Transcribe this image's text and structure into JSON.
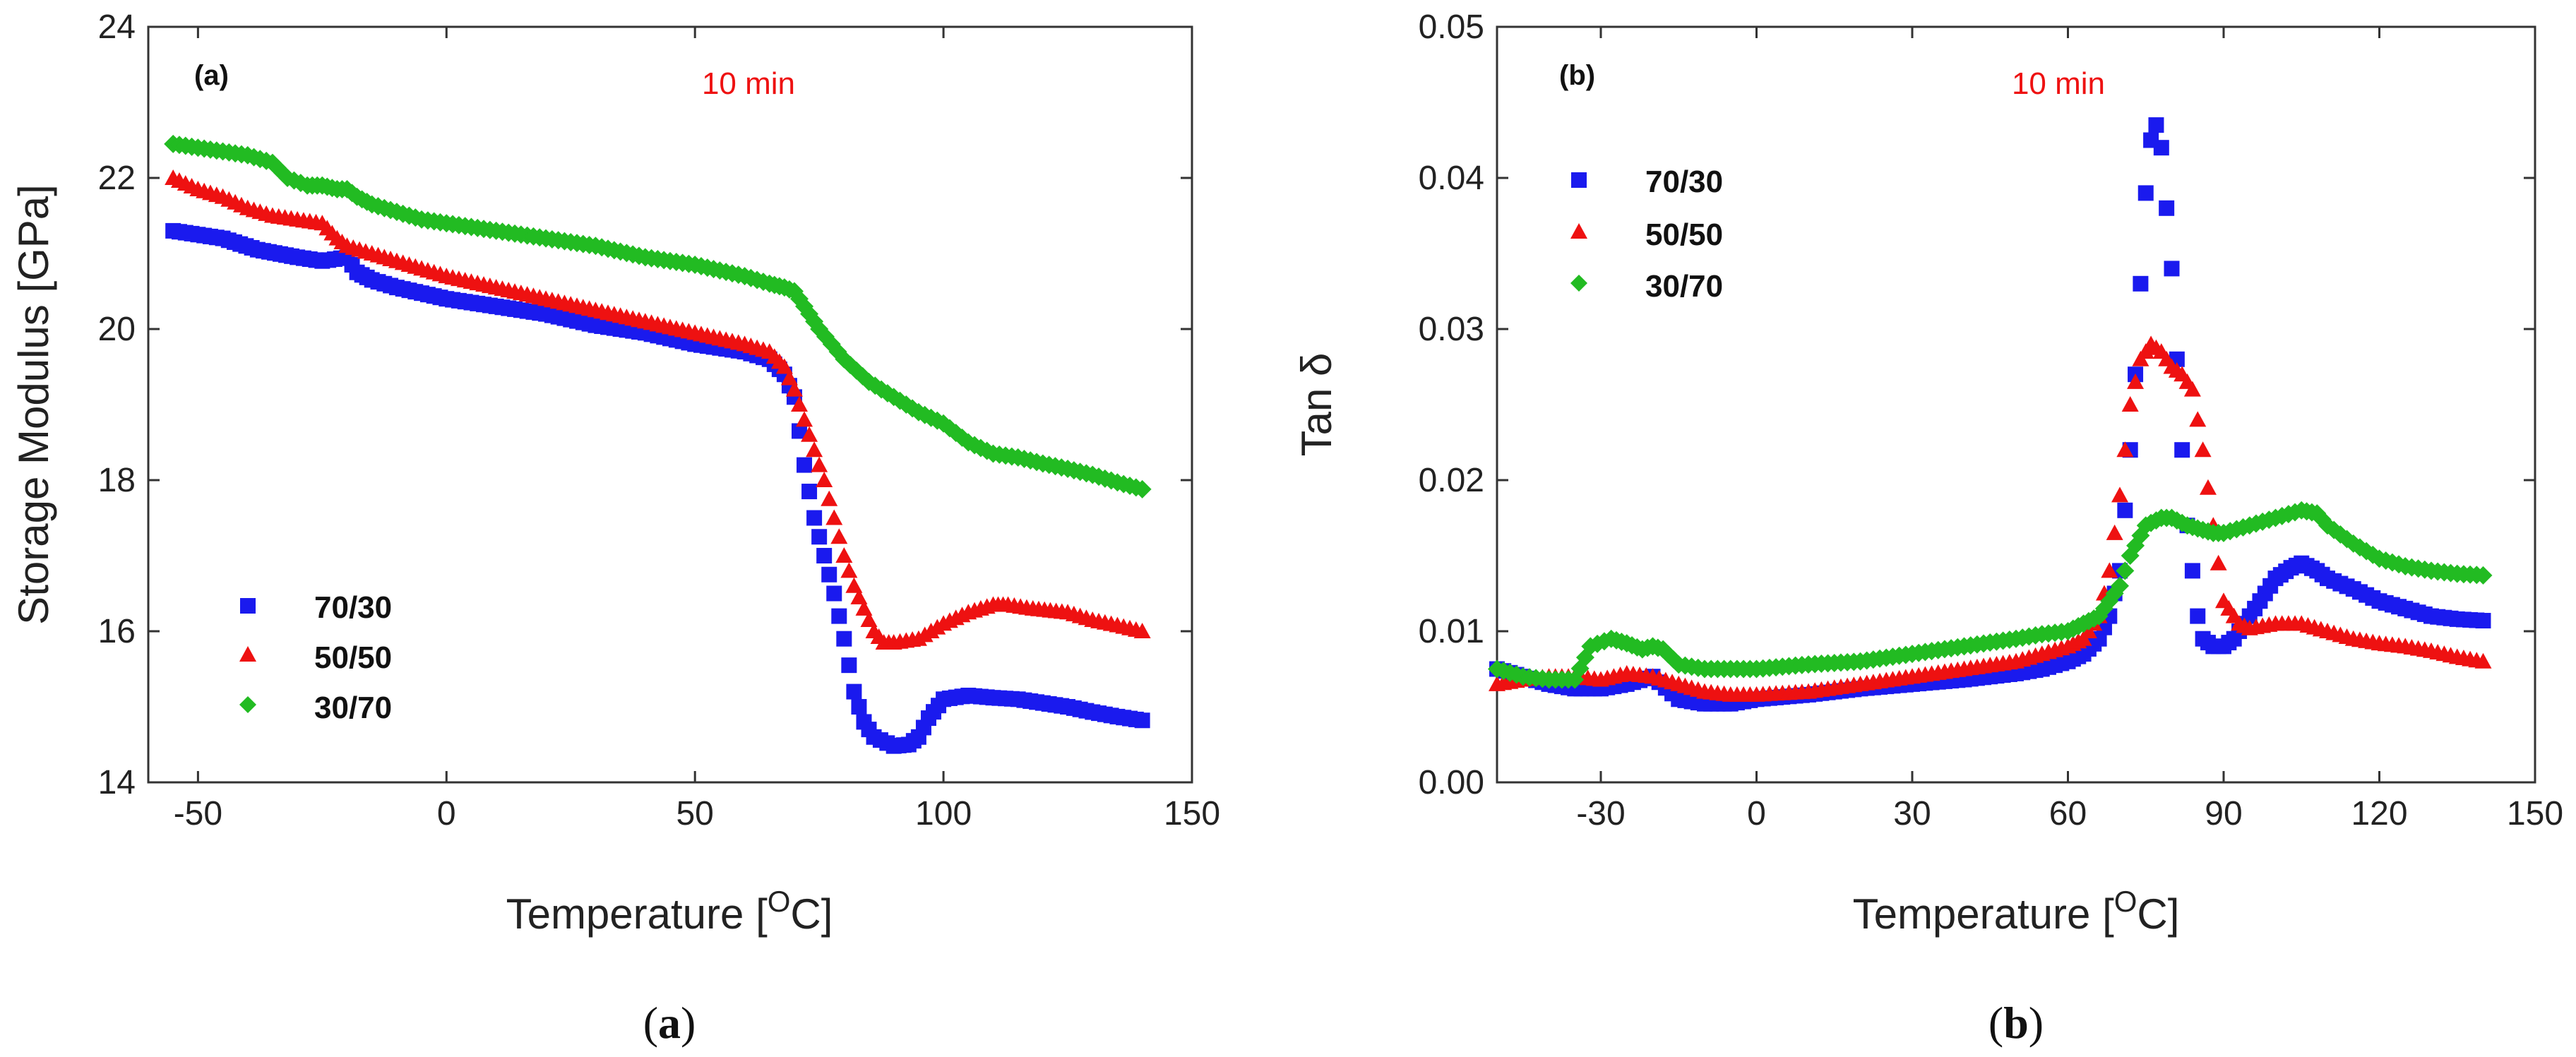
{
  "colors": {
    "70/30": "#1a1aee",
    "50/50": "#ee1111",
    "30/70": "#22bb22",
    "note": "#ee1111"
  },
  "chart_data": [
    {
      "type": "scatter",
      "panel_tag": "(a)",
      "note": "10 min",
      "caption_open": "(",
      "caption_letter": "a",
      "caption_close": ")",
      "xlabel_main": "Temperature [",
      "xlabel_sup": "O",
      "xlabel_end": "C]",
      "ylabel": "Storage Modulus [GPa]",
      "xlim": [
        -60,
        150
      ],
      "ylim": [
        14,
        24
      ],
      "xticks": [
        -50,
        0,
        50,
        100,
        150
      ],
      "xtick_labels": [
        "-50",
        "0",
        "50",
        "100",
        "150"
      ],
      "yticks": [
        14,
        16,
        18,
        20,
        22,
        24
      ],
      "ytick_labels": [
        "14",
        "16",
        "18",
        "20",
        "22",
        "24"
      ],
      "legend_position": "bottom-left",
      "series": [
        {
          "name": "70/30",
          "marker": "square",
          "x": [
            -55,
            -45,
            -38,
            -30,
            -25,
            -20,
            -18,
            -15,
            -10,
            0,
            10,
            20,
            30,
            40,
            50,
            60,
            65,
            68,
            70,
            72,
            74,
            76,
            78,
            80,
            82,
            84,
            86,
            90,
            93,
            95,
            97,
            100,
            105,
            110,
            115,
            120,
            125,
            130,
            135,
            140
          ],
          "y": [
            21.3,
            21.2,
            21.05,
            20.95,
            20.9,
            20.95,
            20.75,
            20.65,
            20.55,
            20.4,
            20.3,
            20.2,
            20.05,
            19.95,
            19.8,
            19.7,
            19.6,
            19.4,
            19.1,
            18.2,
            17.5,
            17.0,
            16.5,
            15.9,
            15.2,
            14.8,
            14.6,
            14.48,
            14.5,
            14.6,
            14.85,
            15.1,
            15.15,
            15.12,
            15.1,
            15.05,
            15.0,
            14.93,
            14.87,
            14.82
          ]
        },
        {
          "name": "50/50",
          "marker": "triangle",
          "x": [
            -55,
            -50,
            -45,
            -40,
            -35,
            -30,
            -25,
            -22,
            -20,
            -15,
            -10,
            -5,
            0,
            10,
            20,
            30,
            40,
            50,
            60,
            65,
            68,
            70,
            72,
            74,
            76,
            78,
            80,
            82,
            84,
            86,
            88,
            90,
            95,
            100,
            105,
            110,
            113,
            118,
            125,
            130,
            135,
            140
          ],
          "y": [
            22.0,
            21.85,
            21.75,
            21.6,
            21.5,
            21.45,
            21.4,
            21.2,
            21.1,
            21.0,
            20.9,
            20.8,
            20.7,
            20.55,
            20.4,
            20.25,
            20.1,
            19.95,
            19.8,
            19.7,
            19.5,
            19.2,
            18.8,
            18.4,
            18.0,
            17.5,
            17.0,
            16.6,
            16.3,
            16.0,
            15.85,
            15.85,
            15.9,
            16.1,
            16.25,
            16.35,
            16.35,
            16.3,
            16.25,
            16.15,
            16.08,
            16.0
          ]
        },
        {
          "name": "30/70",
          "marker": "diamond",
          "x": [
            -55,
            -50,
            -45,
            -40,
            -35,
            -32,
            -28,
            -25,
            -22,
            -20,
            -18,
            -15,
            -10,
            -5,
            0,
            10,
            20,
            30,
            40,
            50,
            60,
            65,
            68,
            70,
            72,
            75,
            80,
            85,
            90,
            95,
            100,
            105,
            110,
            115,
            120,
            125,
            130,
            135,
            140
          ],
          "y": [
            22.45,
            22.4,
            22.35,
            22.3,
            22.2,
            22.0,
            21.9,
            21.9,
            21.85,
            21.85,
            21.75,
            21.65,
            21.55,
            21.45,
            21.4,
            21.3,
            21.2,
            21.1,
            20.95,
            20.85,
            20.7,
            20.6,
            20.55,
            20.5,
            20.3,
            20.0,
            19.6,
            19.3,
            19.1,
            18.9,
            18.75,
            18.5,
            18.35,
            18.3,
            18.22,
            18.15,
            18.07,
            17.97,
            17.88
          ]
        }
      ]
    },
    {
      "type": "scatter",
      "panel_tag": "(b)",
      "note": "10 min",
      "caption_open": "(",
      "caption_letter": "b",
      "caption_close": ")",
      "xlabel_main": "Temperature [",
      "xlabel_sup": "O",
      "xlabel_end": "C]",
      "ylabel": "Tan δ",
      "xlim": [
        -50,
        150
      ],
      "ylim": [
        0.0,
        0.05
      ],
      "xticks": [
        -30,
        0,
        30,
        60,
        90,
        120,
        150
      ],
      "xtick_labels": [
        "-30",
        "0",
        "30",
        "60",
        "90",
        "120",
        "150"
      ],
      "yticks": [
        0.0,
        0.01,
        0.02,
        0.03,
        0.04,
        0.05
      ],
      "ytick_labels": [
        "0.00",
        "0.01",
        "0.02",
        "0.03",
        "0.04",
        "0.05"
      ],
      "legend_position": "top-left",
      "series": [
        {
          "name": "70/30",
          "marker": "square",
          "x": [
            -50,
            -45,
            -40,
            -35,
            -30,
            -25,
            -20,
            -15,
            -10,
            -5,
            0,
            10,
            20,
            30,
            40,
            50,
            55,
            60,
            63,
            66,
            68,
            70,
            71,
            72,
            73,
            74,
            75,
            76,
            77,
            78,
            79,
            80,
            81,
            82,
            83,
            84,
            85,
            86,
            88,
            90,
            92,
            95,
            98,
            100,
            103,
            105,
            108,
            110,
            115,
            120,
            125,
            130,
            135,
            140
          ],
          "y": [
            0.0075,
            0.007,
            0.0065,
            0.0062,
            0.0062,
            0.0065,
            0.007,
            0.0055,
            0.0052,
            0.0052,
            0.0055,
            0.0058,
            0.0062,
            0.0065,
            0.0068,
            0.0072,
            0.0075,
            0.008,
            0.0085,
            0.0095,
            0.011,
            0.014,
            0.018,
            0.022,
            0.027,
            0.033,
            0.039,
            0.0425,
            0.0435,
            0.042,
            0.038,
            0.034,
            0.028,
            0.022,
            0.017,
            0.014,
            0.011,
            0.0095,
            0.009,
            0.009,
            0.0095,
            0.011,
            0.0125,
            0.0135,
            0.0142,
            0.0145,
            0.014,
            0.0135,
            0.0128,
            0.012,
            0.0115,
            0.011,
            0.0108,
            0.0107
          ]
        },
        {
          "name": "50/50",
          "marker": "triangle",
          "x": [
            -50,
            -45,
            -40,
            -35,
            -30,
            -25,
            -20,
            -15,
            -10,
            -5,
            0,
            10,
            20,
            30,
            40,
            50,
            55,
            60,
            63,
            66,
            68,
            70,
            72,
            74,
            76,
            78,
            80,
            82,
            84,
            86,
            88,
            90,
            93,
            95,
            100,
            105,
            110,
            115,
            120,
            125,
            130,
            135,
            140
          ],
          "y": [
            0.0065,
            0.0068,
            0.007,
            0.007,
            0.0068,
            0.0072,
            0.007,
            0.0065,
            0.006,
            0.0058,
            0.0058,
            0.006,
            0.0065,
            0.007,
            0.0075,
            0.008,
            0.0085,
            0.009,
            0.0095,
            0.011,
            0.014,
            0.019,
            0.025,
            0.028,
            0.029,
            0.0285,
            0.0275,
            0.027,
            0.026,
            0.022,
            0.017,
            0.012,
            0.0105,
            0.0102,
            0.0105,
            0.0105,
            0.01,
            0.0095,
            0.0092,
            0.009,
            0.0087,
            0.0083,
            0.008
          ]
        },
        {
          "name": "30/70",
          "marker": "diamond",
          "x": [
            -50,
            -45,
            -40,
            -35,
            -32,
            -28,
            -25,
            -22,
            -20,
            -18,
            -15,
            -10,
            -5,
            0,
            10,
            20,
            30,
            40,
            50,
            55,
            60,
            63,
            66,
            68,
            70,
            72,
            75,
            78,
            80,
            83,
            85,
            88,
            90,
            95,
            100,
            105,
            108,
            110,
            115,
            120,
            125,
            130,
            135,
            140
          ],
          "y": [
            0.0075,
            0.007,
            0.0068,
            0.0068,
            0.009,
            0.0095,
            0.0092,
            0.0088,
            0.009,
            0.0088,
            0.0078,
            0.0075,
            0.0075,
            0.0075,
            0.0078,
            0.008,
            0.0085,
            0.009,
            0.0095,
            0.0098,
            0.01,
            0.0105,
            0.011,
            0.012,
            0.013,
            0.015,
            0.017,
            0.0175,
            0.0175,
            0.017,
            0.0168,
            0.0165,
            0.0165,
            0.017,
            0.0175,
            0.018,
            0.0178,
            0.017,
            0.0158,
            0.0148,
            0.0143,
            0.014,
            0.0138,
            0.0137
          ]
        }
      ]
    }
  ]
}
